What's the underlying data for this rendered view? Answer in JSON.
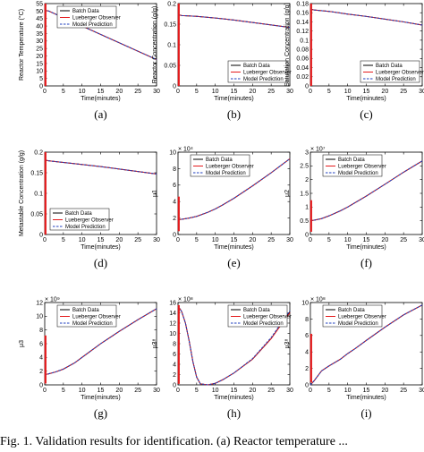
{
  "footer_text": "Fig. 1. Validation results for identification. (a) Reactor temperature ...",
  "colors": {
    "batch": "#000000",
    "observer": "#e41a1c",
    "model": "#1f3fbf"
  },
  "chart_data": [
    {
      "type": "line",
      "caption": "(a)",
      "xlabel": "Time(minutes)",
      "ylabel": "Reactor Temperature (°C)",
      "multiplier": "",
      "xlim": [
        0,
        30
      ],
      "ylim": [
        0,
        55
      ],
      "xticks": [
        0,
        5,
        10,
        15,
        20,
        25,
        30
      ],
      "yticks": [
        0,
        5,
        10,
        15,
        20,
        25,
        30,
        35,
        40,
        45,
        50,
        55
      ],
      "legend": {
        "position": "top-left",
        "entries": [
          "Batch Data",
          "Lueberger Observer",
          "Model Prediction"
        ]
      },
      "x": [
        0,
        0.5,
        1,
        2,
        5,
        10,
        15,
        20,
        25,
        30
      ],
      "series": [
        {
          "name": "Batch Data",
          "style": "solid",
          "values": [
            50,
            50.3,
            50.1,
            49,
            45.6,
            40,
            34.4,
            28.8,
            23.2,
            17.6
          ]
        },
        {
          "name": "Lueberger Observer",
          "style": "solid",
          "values": [
            50,
            50.3,
            50.1,
            49,
            45.6,
            40,
            34.4,
            28.8,
            23.2,
            17.6
          ]
        },
        {
          "name": "Model Prediction",
          "style": "dashed",
          "values": [
            50,
            50.3,
            50.1,
            49,
            45.6,
            40,
            34.4,
            28.8,
            23.2,
            17.6
          ]
        }
      ],
      "observer_spike": {
        "x": 0.2,
        "y": [
          0,
          55
        ]
      }
    },
    {
      "type": "line",
      "caption": "(b)",
      "xlabel": "Time(minutes)",
      "ylabel": "Reactor Concentration (g/g)",
      "multiplier": "",
      "xlim": [
        0,
        30
      ],
      "ylim": [
        0,
        0.2
      ],
      "xticks": [
        0,
        5,
        10,
        15,
        20,
        25,
        30
      ],
      "yticks": [
        0,
        0.05,
        0.1,
        0.15,
        0.2
      ],
      "legend": {
        "position": "bottom-right",
        "entries": [
          "Batch Data",
          "Lueberger Observer",
          "Model Prediction"
        ]
      },
      "x": [
        0,
        0.5,
        1,
        5,
        10,
        15,
        20,
        25,
        30
      ],
      "series": [
        {
          "name": "Batch Data",
          "style": "solid",
          "values": [
            0.172,
            0.172,
            0.171,
            0.169,
            0.165,
            0.16,
            0.154,
            0.148,
            0.142
          ]
        },
        {
          "name": "Lueberger Observer",
          "style": "solid",
          "values": [
            0.172,
            0.172,
            0.171,
            0.169,
            0.165,
            0.16,
            0.154,
            0.148,
            0.142
          ]
        },
        {
          "name": "Model Prediction",
          "style": "dashed",
          "values": [
            0.172,
            0.172,
            0.171,
            0.169,
            0.165,
            0.16,
            0.154,
            0.148,
            0.142
          ]
        }
      ],
      "observer_spike": {
        "x": 0.2,
        "y": [
          0,
          0.2
        ]
      }
    },
    {
      "type": "line",
      "caption": "(c)",
      "xlabel": "Time(minutes)",
      "ylabel": "Saturation Concentration (g/g)",
      "multiplier": "",
      "xlim": [
        0,
        30
      ],
      "ylim": [
        0,
        0.18
      ],
      "xticks": [
        0,
        5,
        10,
        15,
        20,
        25,
        30
      ],
      "yticks": [
        0,
        0.02,
        0.04,
        0.06,
        0.08,
        0.1,
        0.12,
        0.14,
        0.16,
        0.18
      ],
      "legend": {
        "position": "bottom-right",
        "entries": [
          "Batch Data",
          "Lueberger Observer",
          "Model Prediction"
        ]
      },
      "x": [
        0,
        0.5,
        1,
        5,
        10,
        15,
        20,
        25,
        30
      ],
      "series": [
        {
          "name": "Batch Data",
          "style": "solid",
          "values": [
            0.167,
            0.167,
            0.166,
            0.163,
            0.157,
            0.152,
            0.146,
            0.14,
            0.133
          ]
        },
        {
          "name": "Lueberger Observer",
          "style": "solid",
          "values": [
            0.167,
            0.167,
            0.166,
            0.163,
            0.157,
            0.152,
            0.146,
            0.14,
            0.133
          ]
        },
        {
          "name": "Model Prediction",
          "style": "dashed",
          "values": [
            0.167,
            0.167,
            0.166,
            0.163,
            0.157,
            0.152,
            0.146,
            0.14,
            0.133
          ]
        }
      ],
      "observer_spike": {
        "x": 0.2,
        "y": [
          0,
          0.18
        ]
      }
    },
    {
      "type": "line",
      "caption": "(d)",
      "xlabel": "Time(minutes)",
      "ylabel": "Metastable Concentration (g/g)",
      "multiplier": "",
      "xlim": [
        0,
        30
      ],
      "ylim": [
        0,
        0.2
      ],
      "xticks": [
        0,
        5,
        10,
        15,
        20,
        25,
        30
      ],
      "yticks": [
        0,
        0.05,
        0.1,
        0.15,
        0.2
      ],
      "legend": {
        "position": "bottom-left",
        "entries": [
          "Batch Data",
          "Lueberger Observer",
          "Model Prediction"
        ]
      },
      "x": [
        0,
        0.5,
        1,
        5,
        10,
        15,
        20,
        25,
        30
      ],
      "series": [
        {
          "name": "Batch Data",
          "style": "solid",
          "values": [
            0.18,
            0.18,
            0.179,
            0.175,
            0.17,
            0.165,
            0.159,
            0.153,
            0.147
          ]
        },
        {
          "name": "Lueberger Observer",
          "style": "solid",
          "values": [
            0.18,
            0.18,
            0.179,
            0.175,
            0.17,
            0.165,
            0.159,
            0.153,
            0.147
          ]
        },
        {
          "name": "Model Prediction",
          "style": "dashed",
          "values": [
            0.18,
            0.18,
            0.179,
            0.175,
            0.17,
            0.165,
            0.159,
            0.153,
            0.147
          ]
        }
      ],
      "observer_spike": {
        "x": 0.2,
        "y": [
          0,
          0.2
        ]
      }
    },
    {
      "type": "line",
      "caption": "(e)",
      "xlabel": "Time(minutes)",
      "ylabel": "μ1",
      "multiplier": "× 10⁴",
      "xlim": [
        0,
        30
      ],
      "ylim": [
        0,
        10
      ],
      "xticks": [
        0,
        5,
        10,
        15,
        20,
        25,
        30
      ],
      "yticks": [
        0,
        2,
        4,
        6,
        8,
        10
      ],
      "legend": {
        "position": "top-left",
        "entries": [
          "Batch Data",
          "Lueberger Observer",
          "Model Prediction"
        ]
      },
      "x": [
        0,
        1,
        3,
        5,
        8,
        10,
        12,
        15,
        20,
        25,
        30
      ],
      "series": [
        {
          "name": "Batch Data",
          "style": "solid",
          "values": [
            1.8,
            1.85,
            2.0,
            2.2,
            2.7,
            3.1,
            3.6,
            4.4,
            5.9,
            7.5,
            9.2
          ]
        },
        {
          "name": "Lueberger Observer",
          "style": "solid",
          "values": [
            1.8,
            1.85,
            2.0,
            2.2,
            2.7,
            3.1,
            3.6,
            4.4,
            5.9,
            7.5,
            9.2
          ]
        },
        {
          "name": "Model Prediction",
          "style": "dashed",
          "values": [
            1.8,
            1.85,
            2.0,
            2.2,
            2.7,
            3.1,
            3.6,
            4.4,
            5.9,
            7.5,
            9.2
          ]
        }
      ],
      "observer_spike": {
        "x": 0.2,
        "y": [
          0.4,
          4.6
        ]
      }
    },
    {
      "type": "line",
      "caption": "(f)",
      "xlabel": "Time(minutes)",
      "ylabel": "μ2",
      "multiplier": "× 10⁷",
      "xlim": [
        0,
        30
      ],
      "ylim": [
        0,
        3
      ],
      "xticks": [
        0,
        5,
        10,
        15,
        20,
        25,
        30
      ],
      "yticks": [
        0,
        0.5,
        1,
        1.5,
        2,
        2.5,
        3
      ],
      "legend": {
        "position": "top-left",
        "entries": [
          "Batch Data",
          "Lueberger Observer",
          "Model Prediction"
        ]
      },
      "x": [
        0,
        1,
        3,
        5,
        8,
        10,
        15,
        20,
        25,
        30
      ],
      "series": [
        {
          "name": "Batch Data",
          "style": "solid",
          "values": [
            0.5,
            0.52,
            0.58,
            0.68,
            0.86,
            1.0,
            1.4,
            1.83,
            2.27,
            2.68
          ]
        },
        {
          "name": "Lueberger Observer",
          "style": "solid",
          "values": [
            0.5,
            0.52,
            0.58,
            0.68,
            0.86,
            1.0,
            1.4,
            1.83,
            2.27,
            2.68
          ]
        },
        {
          "name": "Model Prediction",
          "style": "dashed",
          "values": [
            0.5,
            0.52,
            0.58,
            0.68,
            0.86,
            1.0,
            1.4,
            1.83,
            2.27,
            2.68
          ]
        }
      ],
      "observer_spike": {
        "x": 0.2,
        "y": [
          0.1,
          1.25
        ]
      }
    },
    {
      "type": "line",
      "caption": "(g)",
      "xlabel": "Time(minutes)",
      "ylabel": "μ3",
      "multiplier": "× 10⁹",
      "xlim": [
        0,
        30
      ],
      "ylim": [
        0,
        12
      ],
      "xticks": [
        0,
        5,
        10,
        15,
        20,
        25,
        30
      ],
      "yticks": [
        0,
        2,
        4,
        6,
        8,
        10,
        12
      ],
      "legend": {
        "position": "top-left",
        "entries": [
          "Batch Data",
          "Lueberger Observer",
          "Model Prediction"
        ]
      },
      "x": [
        0,
        1,
        3,
        5,
        8,
        10,
        12,
        15,
        20,
        25,
        30
      ],
      "series": [
        {
          "name": "Batch Data",
          "style": "solid",
          "values": [
            1.5,
            1.6,
            1.9,
            2.3,
            3.2,
            4.0,
            4.8,
            6.0,
            7.8,
            9.5,
            11.1
          ]
        },
        {
          "name": "Lueberger Observer",
          "style": "solid",
          "values": [
            1.5,
            1.6,
            1.9,
            2.3,
            3.2,
            4.0,
            4.8,
            6.0,
            7.8,
            9.5,
            11.1
          ]
        },
        {
          "name": "Model Prediction",
          "style": "dashed",
          "values": [
            1.5,
            1.6,
            1.9,
            2.3,
            3.2,
            4.0,
            4.8,
            6.0,
            7.8,
            9.5,
            11.1
          ]
        }
      ],
      "observer_spike": {
        "x": 0.2,
        "y": [
          0.2,
          7.2
        ]
      }
    },
    {
      "type": "line",
      "caption": "(h)",
      "xlabel": "Time(minutes)",
      "ylabel": "μ3⁸",
      "multiplier": "× 10⁸",
      "xlim": [
        0,
        30
      ],
      "ylim": [
        0,
        16
      ],
      "xticks": [
        0,
        5,
        10,
        15,
        20,
        25,
        30
      ],
      "yticks": [
        0,
        2,
        4,
        6,
        8,
        10,
        12,
        14,
        16
      ],
      "legend": {
        "position": "top-right",
        "entries": [
          "Batch Data",
          "Lueberger Observer",
          "Model Prediction"
        ]
      },
      "x": [
        0,
        0.5,
        1,
        2,
        3,
        4,
        5,
        6,
        8,
        10,
        12,
        15,
        20,
        25,
        30
      ],
      "series": [
        {
          "name": "Batch Data",
          "style": "solid",
          "values": [
            15,
            14.8,
            14.2,
            12,
            8.5,
            4.5,
            1.5,
            0.2,
            0,
            0.3,
            1.0,
            2.3,
            5.0,
            9.0,
            14.2
          ]
        },
        {
          "name": "Lueberger Observer",
          "style": "solid",
          "values": [
            15,
            14.8,
            14.2,
            12,
            8.5,
            4.5,
            1.5,
            0.2,
            0,
            0.3,
            1.0,
            2.3,
            5.0,
            9.0,
            14.0
          ]
        },
        {
          "name": "Model Prediction",
          "style": "dashed",
          "values": [
            15,
            14.8,
            14.2,
            12,
            8.5,
            4.5,
            1.5,
            0.2,
            0,
            0.3,
            1.0,
            2.3,
            5.1,
            9.2,
            14.4
          ]
        }
      ],
      "observer_spike": {
        "x": 0.2,
        "y": [
          0.2,
          15.5
        ]
      }
    },
    {
      "type": "line",
      "caption": "(i)",
      "xlabel": "Time(minutes)",
      "ylabel": "μ3⁸",
      "multiplier": "× 10⁸",
      "xlim": [
        0,
        30
      ],
      "ylim": [
        0,
        10
      ],
      "xticks": [
        0,
        5,
        10,
        15,
        20,
        25,
        30
      ],
      "yticks": [
        0,
        2,
        4,
        6,
        8,
        10
      ],
      "legend": {
        "position": "top-left",
        "entries": [
          "Batch Data",
          "Lueberger Observer",
          "Model Prediction"
        ]
      },
      "x": [
        0,
        1,
        2,
        3,
        4,
        5,
        8,
        10,
        12,
        15,
        20,
        25,
        30
      ],
      "series": [
        {
          "name": "Batch Data",
          "style": "solid",
          "values": [
            0,
            0.5,
            1.1,
            1.7,
            2.0,
            2.3,
            3.1,
            3.8,
            4.4,
            5.4,
            7.0,
            8.5,
            9.7
          ]
        },
        {
          "name": "Lueberger Observer",
          "style": "solid",
          "values": [
            0,
            0.5,
            1.1,
            1.7,
            2.0,
            2.3,
            3.1,
            3.8,
            4.4,
            5.4,
            7.0,
            8.5,
            9.7
          ]
        },
        {
          "name": "Model Prediction",
          "style": "dashed",
          "values": [
            0,
            0.5,
            1.1,
            1.7,
            2.0,
            2.3,
            3.1,
            3.8,
            4.4,
            5.4,
            7.0,
            8.5,
            9.7
          ]
        }
      ],
      "observer_spike": {
        "x": 0.2,
        "y": [
          0.3,
          6.2
        ]
      }
    }
  ]
}
